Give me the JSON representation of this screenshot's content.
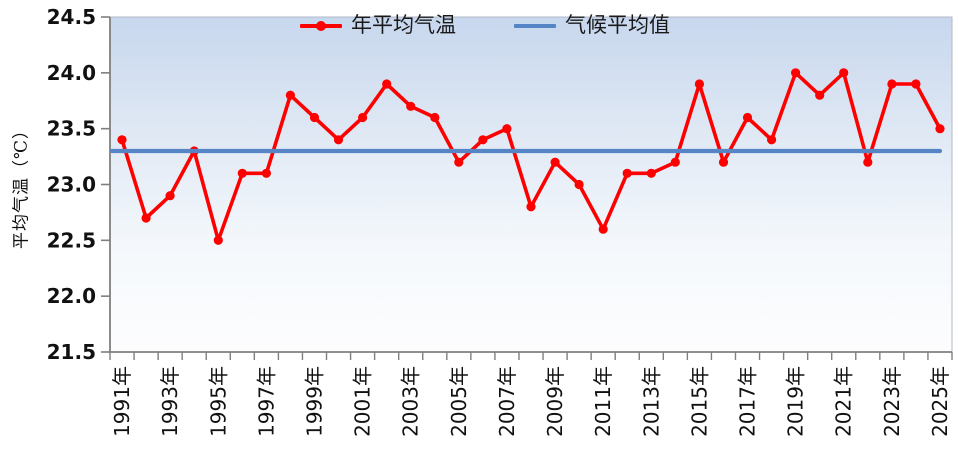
{
  "chart_data": {
    "type": "line",
    "title": "",
    "ylabel": "平均气温（℃）",
    "xlabel": "",
    "ylim": [
      21.5,
      24.5
    ],
    "ytick_step": 0.5,
    "ytick_labels": [
      "21.5",
      "22.0",
      "22.5",
      "23.0",
      "23.5",
      "24.0",
      "24.5"
    ],
    "x": [
      1991,
      1992,
      1993,
      1994,
      1995,
      1996,
      1997,
      1998,
      1999,
      2000,
      2001,
      2002,
      2003,
      2004,
      2005,
      2006,
      2007,
      2008,
      2009,
      2010,
      2011,
      2012,
      2013,
      2014,
      2015,
      2016,
      2017,
      2018,
      2019,
      2020,
      2021,
      2022,
      2023,
      2024,
      2025
    ],
    "x_label_every": 2,
    "x_label_suffix": "年",
    "x_tick_labels_shown": [
      "1991年",
      "1993年",
      "1995年",
      "1997年",
      "1999年",
      "2001年",
      "2003年",
      "2005年",
      "2007年",
      "2009年",
      "2011年",
      "2013年",
      "2015年",
      "2017年",
      "2019年",
      "2021年",
      "2023年",
      "2025年"
    ],
    "grid": false,
    "legend_position": "top-center",
    "series": [
      {
        "name": "年平均气温",
        "type": "line",
        "marker": "circle",
        "color": "#fe0000",
        "values": [
          23.4,
          22.7,
          22.9,
          23.3,
          22.5,
          23.1,
          23.1,
          23.8,
          23.6,
          23.4,
          23.6,
          23.9,
          23.7,
          23.6,
          23.2,
          23.4,
          23.5,
          22.8,
          23.2,
          23.0,
          22.6,
          23.1,
          23.1,
          23.2,
          23.9,
          23.2,
          23.6,
          23.4,
          24.0,
          23.8,
          24.0,
          23.2,
          23.9,
          23.9,
          23.5
        ]
      },
      {
        "name": "气候平均值",
        "type": "hline",
        "marker": "none",
        "color": "#5585c5",
        "value": 23.3
      }
    ]
  },
  "legend": {
    "series1_label": "年平均气温",
    "series2_label": "气候平均值"
  },
  "axes": {
    "y_title": "平均气温（℃）"
  },
  "colors": {
    "series1": "#fe0000",
    "series2": "#5585c5",
    "axis": "#7f7f7f",
    "plot_border": "#b3bac6",
    "plot_bg_top": "#c9d8ee",
    "plot_bg_bottom": "#fdfdfe",
    "text": "#111111"
  }
}
